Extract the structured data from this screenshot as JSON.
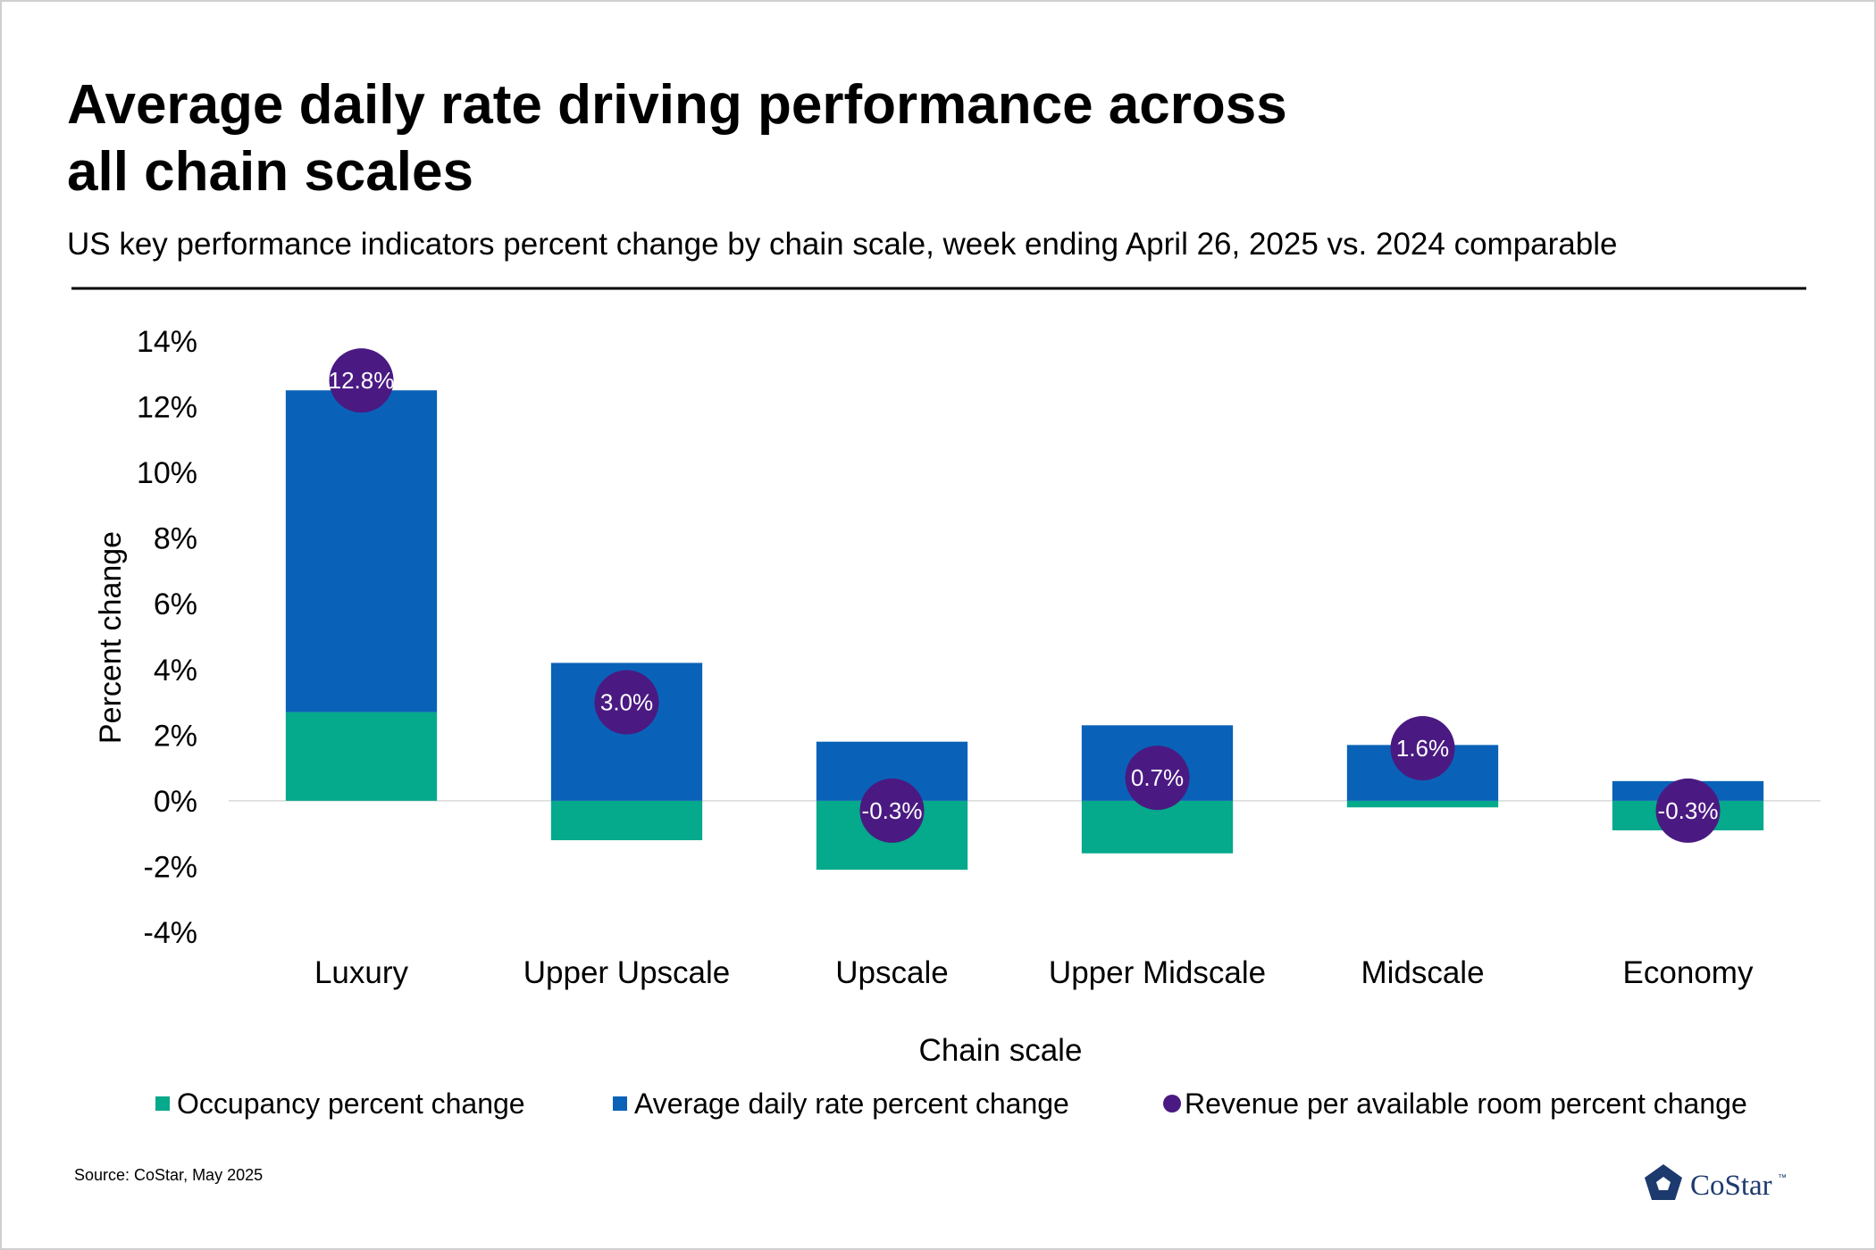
{
  "chart_data": {
    "type": "stacked-bar-with-dots",
    "title": [
      "Average daily rate driving performance across",
      "all chain scales"
    ],
    "subtitle": "US key performance indicators percent change by chain scale, week ending April 26, 2025 vs. 2024 comparable",
    "x_label": "Chain scale",
    "y_label": "Percent change",
    "categories": [
      "Luxury",
      "Upper Upscale",
      "Upscale",
      "Upper Midscale",
      "Midscale",
      "Economy"
    ],
    "series": [
      {
        "name": "Occupancy percent change",
        "kind": "bar",
        "color": "#05a98b",
        "values": [
          2.7,
          -1.2,
          -2.1,
          -1.6,
          -0.2,
          -0.9
        ]
      },
      {
        "name": "Average daily rate percent change",
        "kind": "bar",
        "color": "#0a62b8",
        "values": [
          9.8,
          4.2,
          1.8,
          2.3,
          1.7,
          0.6
        ]
      },
      {
        "name": "Revenue per available room percent change",
        "kind": "dot",
        "color": "#4a1a82",
        "values": [
          12.8,
          3.0,
          -0.3,
          0.7,
          1.6,
          -0.3
        ],
        "value_labels": [
          "12.8%",
          "3.0%",
          "-0.3%",
          "0.7%",
          "1.6%",
          "-0.3%"
        ]
      }
    ],
    "ylim": [
      -4,
      14
    ],
    "yticks": [
      {
        "value": -4,
        "label": "-4%"
      },
      {
        "value": -2,
        "label": "-2%"
      },
      {
        "value": 0,
        "label": "0%"
      },
      {
        "value": 2,
        "label": "2%"
      },
      {
        "value": 4,
        "label": "4%"
      },
      {
        "value": 6,
        "label": "6%"
      },
      {
        "value": 8,
        "label": "8%"
      },
      {
        "value": 10,
        "label": "10%"
      },
      {
        "value": 12,
        "label": "12%"
      },
      {
        "value": 14,
        "label": "14%"
      }
    ],
    "source": "Source: CoStar, May 2025",
    "logo": "CoStar",
    "logo_mark": "™"
  }
}
